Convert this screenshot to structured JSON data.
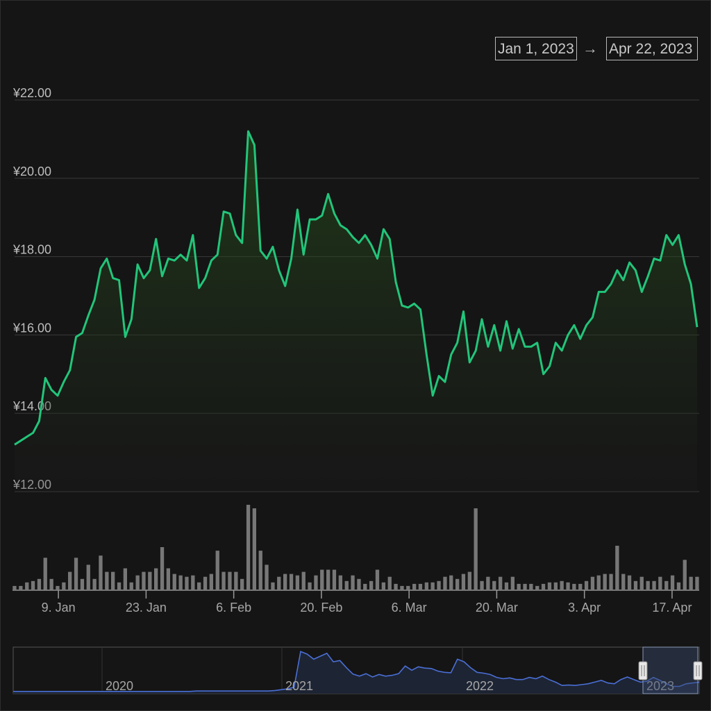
{
  "range_selector": {
    "from": "Jan 1, 2023",
    "arrow": "→",
    "to": "Apr 22, 2023"
  },
  "colors": {
    "background": "#151515",
    "price_line": "#22c57a",
    "volume_bar": "#777777",
    "navigator_line": "#4a6fd6",
    "grid": "#3a3a3a"
  },
  "chart_data": {
    "type": "line",
    "xlabel": "",
    "ylabel": "",
    "grid": true,
    "legend": "none",
    "ylim": [
      12,
      22
    ],
    "y_ticks": [
      "¥22.00",
      "¥20.00",
      "¥18.00",
      "¥16.00",
      "¥14.00",
      "¥12.00"
    ],
    "x_range": [
      "2023-01-02",
      "2023-04-21"
    ],
    "x_ticks": [
      {
        "date": "2023-01-09",
        "label": "9. Jan"
      },
      {
        "date": "2023-01-23",
        "label": "23. Jan"
      },
      {
        "date": "2023-02-06",
        "label": "6. Feb"
      },
      {
        "date": "2023-02-20",
        "label": "20. Feb"
      },
      {
        "date": "2023-03-06",
        "label": "6. Mar"
      },
      {
        "date": "2023-03-20",
        "label": "20. Mar"
      },
      {
        "date": "2023-04-03",
        "label": "3. Apr"
      },
      {
        "date": "2023-04-17",
        "label": "17. Apr"
      }
    ],
    "price": [
      13.2,
      13.3,
      13.4,
      13.5,
      13.8,
      14.9,
      14.6,
      14.45,
      14.8,
      15.1,
      15.95,
      16.05,
      16.5,
      16.9,
      17.7,
      17.95,
      17.45,
      17.4,
      15.95,
      16.4,
      17.8,
      17.45,
      17.65,
      18.45,
      17.5,
      17.95,
      17.9,
      18.05,
      17.9,
      18.55,
      17.2,
      17.45,
      17.9,
      18.05,
      19.15,
      19.1,
      18.55,
      18.35,
      21.2,
      20.85,
      18.15,
      17.95,
      18.25,
      17.65,
      17.25,
      17.95,
      19.2,
      18.05,
      18.95,
      18.95,
      19.05,
      19.6,
      19.1,
      18.8,
      18.7,
      18.5,
      18.35,
      18.55,
      18.3,
      17.95,
      18.7,
      18.45,
      17.35,
      16.75,
      16.7,
      16.8,
      16.65,
      15.5,
      14.45,
      14.95,
      14.8,
      15.5,
      15.8,
      16.6,
      15.3,
      15.6,
      16.4,
      15.7,
      16.25,
      15.6,
      16.35,
      15.65,
      16.15,
      15.7,
      15.7,
      15.8,
      15.0,
      15.2,
      15.8,
      15.6,
      16.0,
      16.25,
      15.9,
      16.25,
      16.45,
      17.1,
      17.1,
      17.3,
      17.65,
      17.4,
      17.85,
      17.65,
      17.1,
      17.5,
      17.95,
      17.9,
      18.55,
      18.3,
      18.55,
      17.8,
      17.3,
      16.2
    ],
    "volume": [
      0.05,
      0.05,
      0.1,
      0.12,
      0.15,
      0.45,
      0.15,
      0.05,
      0.1,
      0.25,
      0.45,
      0.15,
      0.35,
      0.15,
      0.48,
      0.25,
      0.25,
      0.1,
      0.3,
      0.1,
      0.2,
      0.25,
      0.25,
      0.3,
      0.6,
      0.3,
      0.22,
      0.2,
      0.18,
      0.2,
      0.1,
      0.18,
      0.22,
      0.55,
      0.25,
      0.25,
      0.25,
      0.15,
      1.2,
      1.15,
      0.55,
      0.35,
      0.1,
      0.18,
      0.22,
      0.22,
      0.2,
      0.25,
      0.1,
      0.2,
      0.28,
      0.28,
      0.28,
      0.2,
      0.12,
      0.2,
      0.15,
      0.08,
      0.12,
      0.28,
      0.1,
      0.18,
      0.08,
      0.05,
      0.05,
      0.08,
      0.08,
      0.1,
      0.1,
      0.12,
      0.18,
      0.2,
      0.15,
      0.22,
      0.25,
      1.15,
      0.12,
      0.18,
      0.12,
      0.18,
      0.1,
      0.18,
      0.08,
      0.08,
      0.08,
      0.05,
      0.08,
      0.1,
      0.1,
      0.12,
      0.1,
      0.08,
      0.08,
      0.12,
      0.18,
      0.2,
      0.22,
      0.22,
      0.62,
      0.22,
      0.2,
      0.12,
      0.18,
      0.12,
      0.12,
      0.18,
      0.12,
      0.2,
      0.1,
      0.42,
      0.18,
      0.18
    ],
    "navigator": {
      "labels": [
        "2020",
        "2021",
        "2022",
        "2023"
      ],
      "selected_range": [
        "2023-01-01",
        "2023-04-22"
      ],
      "series": [
        0.02,
        0.02,
        0.02,
        0.02,
        0.02,
        0.02,
        0.02,
        0.02,
        0.02,
        0.02,
        0.02,
        0.02,
        0.02,
        0.02,
        0.02,
        0.02,
        0.02,
        0.02,
        0.02,
        0.02,
        0.02,
        0.02,
        0.02,
        0.02,
        0.02,
        0.02,
        0.02,
        0.02,
        0.03,
        0.03,
        0.03,
        0.03,
        0.03,
        0.03,
        0.03,
        0.03,
        0.03,
        0.03,
        0.03,
        0.03,
        0.04,
        0.06,
        0.08,
        0.12,
        0.96,
        0.9,
        0.78,
        0.85,
        0.92,
        0.72,
        0.75,
        0.58,
        0.43,
        0.38,
        0.44,
        0.36,
        0.42,
        0.38,
        0.4,
        0.44,
        0.62,
        0.52,
        0.6,
        0.57,
        0.56,
        0.5,
        0.47,
        0.46,
        0.78,
        0.72,
        0.58,
        0.47,
        0.45,
        0.42,
        0.35,
        0.32,
        0.34,
        0.3,
        0.3,
        0.35,
        0.32,
        0.38,
        0.3,
        0.24,
        0.16,
        0.17,
        0.16,
        0.18,
        0.2,
        0.24,
        0.28,
        0.22,
        0.2,
        0.3,
        0.36,
        0.3,
        0.24,
        0.26,
        0.35,
        0.28,
        0.2,
        0.14,
        0.14,
        0.2,
        0.22,
        0.24
      ]
    }
  }
}
